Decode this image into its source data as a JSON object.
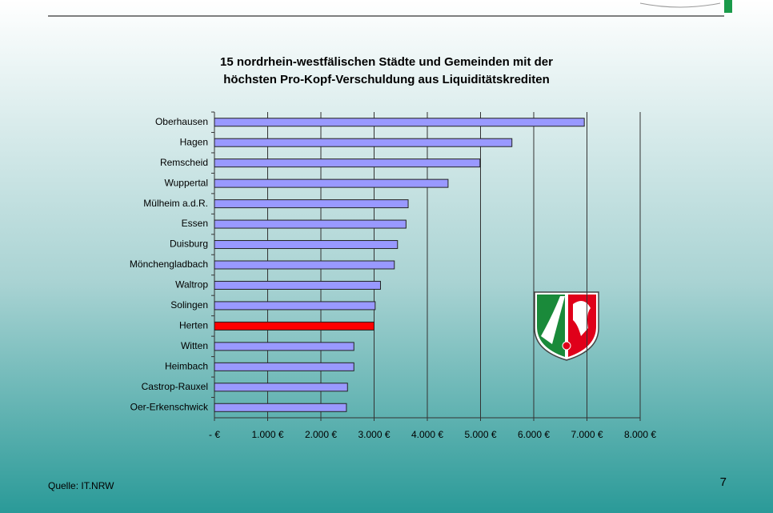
{
  "chart_data": {
    "type": "barh",
    "title": [
      "15 nordrhein-westfälischen Städte und Gemeinden mit der",
      "höchsten  Pro-Kopf-Verschuldung aus Liquiditätskrediten"
    ],
    "categories": [
      "Oberhausen",
      "Hagen",
      "Remscheid",
      "Wuppertal",
      "Mülheim a.d.R.",
      "Essen",
      "Duisburg",
      "Mönchengladbach",
      "Waltrop",
      "Solingen",
      "Herten",
      "Witten",
      "Heimbach",
      "Castrop-Rauxel",
      "Oer-Erkenschwick"
    ],
    "values": [
      6950,
      5590,
      4990,
      4390,
      3640,
      3600,
      3440,
      3380,
      3120,
      3020,
      3000,
      2620,
      2620,
      2500,
      2480
    ],
    "colors": [
      "#9999ff",
      "#9999ff",
      "#9999ff",
      "#9999ff",
      "#9999ff",
      "#9999ff",
      "#9999ff",
      "#9999ff",
      "#9999ff",
      "#9999ff",
      "#ff0000",
      "#9999ff",
      "#9999ff",
      "#9999ff",
      "#9999ff"
    ],
    "xlim": [
      0,
      8000
    ],
    "xticks": [
      {
        "value": 0,
        "label": "- €"
      },
      {
        "value": 1000,
        "label": "1.000 €"
      },
      {
        "value": 2000,
        "label": "2.000 €"
      },
      {
        "value": 3000,
        "label": "3.000 €"
      },
      {
        "value": 4000,
        "label": "4.000 €"
      },
      {
        "value": 5000,
        "label": "5.000 €"
      },
      {
        "value": 6000,
        "label": "6.000 €"
      },
      {
        "value": 7000,
        "label": "7.000 €"
      },
      {
        "value": 8000,
        "label": "8.000 €"
      }
    ],
    "grid": true
  },
  "footer": {
    "source": "Quelle: IT.NRW",
    "page": "7"
  }
}
